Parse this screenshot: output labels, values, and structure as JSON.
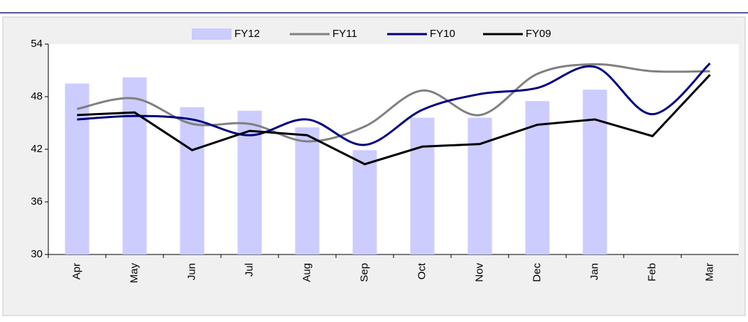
{
  "chart_data": {
    "type": "bar_line",
    "categories": [
      "Apr",
      "May",
      "Jun",
      "Jul",
      "Aug",
      "Sep",
      "Oct",
      "Nov",
      "Dec",
      "Jan",
      "Feb",
      "Mar"
    ],
    "series": [
      {
        "name": "FY12",
        "kind": "bar",
        "color": "#ccccff",
        "values": [
          49.5,
          50.2,
          46.8,
          46.4,
          44.5,
          41.9,
          45.6,
          45.6,
          47.5,
          48.8,
          null,
          null
        ]
      },
      {
        "name": "FY11",
        "kind": "line",
        "smooth": true,
        "color": "#808080",
        "values": [
          46.6,
          47.8,
          44.9,
          44.9,
          42.9,
          44.6,
          48.7,
          45.9,
          50.6,
          51.7,
          50.9,
          50.9
        ]
      },
      {
        "name": "FY10",
        "kind": "line",
        "smooth": true,
        "color": "#000080",
        "values": [
          45.4,
          45.8,
          45.4,
          43.6,
          45.4,
          42.5,
          46.5,
          48.3,
          49.0,
          51.4,
          46.0,
          51.8
        ]
      },
      {
        "name": "FY09",
        "kind": "line",
        "smooth": false,
        "color": "#000000",
        "values": [
          45.9,
          46.2,
          41.9,
          44.1,
          43.6,
          40.3,
          42.3,
          42.6,
          44.8,
          45.4,
          43.5,
          50.5
        ]
      }
    ],
    "ylim": [
      30,
      54
    ],
    "yticks": [
      30,
      36,
      42,
      48,
      54
    ],
    "grid": false,
    "legend": "top"
  }
}
